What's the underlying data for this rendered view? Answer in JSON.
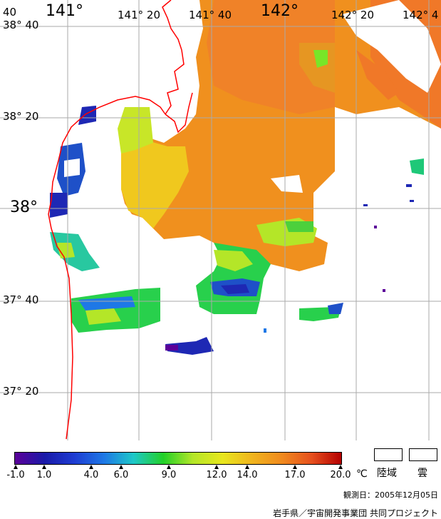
{
  "map": {
    "longitude_labels": [
      "141°",
      "141° 20",
      "141° 40",
      "142°",
      "142° 20",
      "142° 4"
    ],
    "latitude_labels": [
      "38° 40",
      "38° 20",
      "38°",
      "37° 40",
      "37° 20"
    ],
    "edge_fragment": "40"
  },
  "legend": {
    "colorbar_ticks": [
      "-1.0",
      "1.0",
      "4.0",
      "6.0",
      "9.0",
      "12.0",
      "14.0",
      "17.0",
      "20.0"
    ],
    "unit": "℃",
    "colors": [
      "#5b0099",
      "#1a1aa8",
      "#1e3cd2",
      "#1e78e6",
      "#1ec8c8",
      "#22d028",
      "#b4e628",
      "#e8e61e",
      "#f0b41e",
      "#f08a1e",
      "#e6501e",
      "#b40000"
    ],
    "land_label": "陸域",
    "cloud_label": "雲"
  },
  "footer": {
    "observation_date": "観測日：2005年12月05日",
    "credit": "岩手県／宇宙開発事業団 共同プロジェクト"
  }
}
